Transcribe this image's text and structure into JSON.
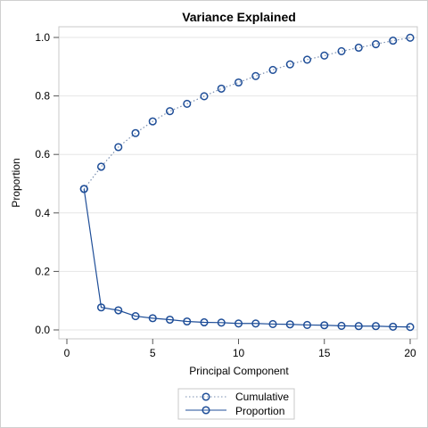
{
  "chart_data": {
    "type": "line",
    "title": "Variance Explained",
    "xlabel": "Principal Component",
    "ylabel": "Proportion",
    "xlim": [
      0,
      20
    ],
    "ylim": [
      0,
      1.0
    ],
    "xticks": [
      "0",
      "5",
      "10",
      "15",
      "20"
    ],
    "yticks": [
      "0.0",
      "0.2",
      "0.4",
      "0.6",
      "0.8",
      "1.0"
    ],
    "grid": "horizontal",
    "legend_position": "bottom",
    "x": [
      1,
      2,
      3,
      4,
      5,
      6,
      7,
      8,
      9,
      10,
      11,
      12,
      13,
      14,
      15,
      16,
      17,
      18,
      19,
      20
    ],
    "series": [
      {
        "name": "Cumulative",
        "line_style": "dotted",
        "color": "#7a8fb0",
        "values": [
          0.482,
          0.558,
          0.625,
          0.673,
          0.713,
          0.748,
          0.773,
          0.799,
          0.825,
          0.846,
          0.868,
          0.889,
          0.908,
          0.924,
          0.938,
          0.953,
          0.965,
          0.977,
          0.989,
          0.999
        ]
      },
      {
        "name": "Proportion",
        "line_style": "solid",
        "color": "#1f4e98",
        "values": [
          0.482,
          0.077,
          0.067,
          0.047,
          0.04,
          0.035,
          0.029,
          0.026,
          0.025,
          0.022,
          0.022,
          0.02,
          0.019,
          0.017,
          0.016,
          0.014,
          0.013,
          0.013,
          0.011,
          0.01
        ]
      }
    ],
    "marker_color": "#1f4e98"
  }
}
